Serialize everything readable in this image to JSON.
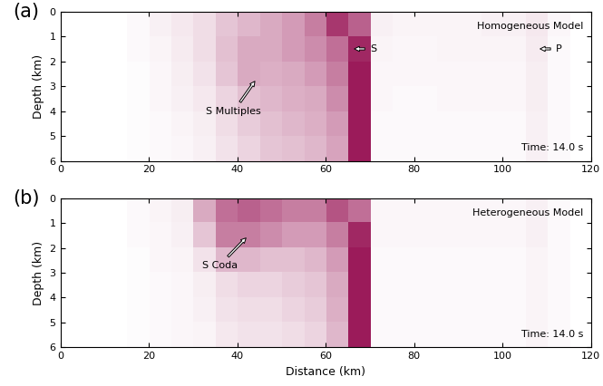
{
  "chart_data": [
    {
      "type": "heatmap",
      "panel_label": "(a)",
      "model_label": "Homogeneous Model",
      "time_label": "Time: 14.0 s",
      "ylabel": "Depth (km)",
      "color": "#9b1b5a",
      "xlim": [
        0,
        120
      ],
      "ylim": [
        6,
        0
      ],
      "xticks": [
        0,
        20,
        40,
        60,
        80,
        100,
        120
      ],
      "yticks": [
        0,
        1,
        2,
        3,
        4,
        5,
        6
      ],
      "cells": [
        [
          0,
          0,
          0,
          0.02,
          0.05,
          0.08,
          0.12,
          0.2,
          0.25,
          0.3,
          0.35,
          0.45,
          0.7,
          0.55,
          0.05,
          0.04,
          0.04,
          0.04,
          0.04,
          0.05,
          0.05,
          0.08,
          0.03,
          0
        ],
        [
          0,
          0,
          0,
          0.02,
          0.04,
          0.07,
          0.12,
          0.22,
          0.3,
          0.3,
          0.35,
          0.4,
          0.5,
          0.75,
          0.04,
          0.03,
          0.03,
          0.04,
          0.04,
          0.04,
          0.04,
          0.07,
          0.02,
          0
        ],
        [
          0,
          0,
          0,
          0.01,
          0.03,
          0.06,
          0.1,
          0.2,
          0.3,
          0.28,
          0.3,
          0.35,
          0.45,
          0.8,
          0.03,
          0.03,
          0.03,
          0.03,
          0.03,
          0.03,
          0.03,
          0.06,
          0.02,
          0
        ],
        [
          0,
          0,
          0,
          0.01,
          0.03,
          0.05,
          0.08,
          0.15,
          0.22,
          0.25,
          0.28,
          0.3,
          0.4,
          0.8,
          0.03,
          0.02,
          0.02,
          0.03,
          0.03,
          0.03,
          0.03,
          0.06,
          0.02,
          0
        ],
        [
          0,
          0,
          0,
          0.01,
          0.02,
          0.04,
          0.06,
          0.12,
          0.18,
          0.22,
          0.25,
          0.28,
          0.35,
          0.8,
          0.02,
          0.02,
          0.02,
          0.02,
          0.02,
          0.02,
          0.02,
          0.05,
          0.02,
          0
        ],
        [
          0,
          0,
          0,
          0.01,
          0.02,
          0.03,
          0.05,
          0.1,
          0.15,
          0.2,
          0.22,
          0.25,
          0.32,
          0.8,
          0.02,
          0.02,
          0.02,
          0.02,
          0.02,
          0.02,
          0.02,
          0.05,
          0.02,
          0
        ]
      ],
      "annotations": [
        {
          "text": "S Multiples",
          "xy": [
            44,
            2.8
          ],
          "xytext": [
            33,
            4.0
          ]
        },
        {
          "text": "S",
          "xy": [
            66.5,
            1.5
          ],
          "xytext": [
            70,
            1.5
          ]
        },
        {
          "text": "P",
          "xy": [
            108.5,
            1.5
          ],
          "xytext": [
            112,
            1.5
          ]
        }
      ]
    },
    {
      "type": "heatmap",
      "panel_label": "(b)",
      "model_label": "Heterogeneous Model",
      "time_label": "Time: 14.0 s",
      "xlabel": "Distance (km)",
      "ylabel": "Depth (km)",
      "color": "#9b1b5a",
      "xlim": [
        0,
        120
      ],
      "ylim": [
        6,
        0
      ],
      "xticks": [
        0,
        20,
        40,
        60,
        80,
        100,
        120
      ],
      "yticks": [
        0,
        1,
        2,
        3,
        4,
        5,
        6
      ],
      "cells": [
        [
          0,
          0,
          0,
          0.02,
          0.04,
          0.06,
          0.3,
          0.5,
          0.55,
          0.5,
          0.45,
          0.45,
          0.6,
          0.5,
          0.03,
          0.03,
          0.03,
          0.03,
          0.03,
          0.03,
          0.03,
          0.05,
          0.02,
          0
        ],
        [
          0,
          0,
          0,
          0.02,
          0.03,
          0.05,
          0.2,
          0.45,
          0.45,
          0.4,
          0.35,
          0.35,
          0.45,
          0.75,
          0.03,
          0.03,
          0.03,
          0.03,
          0.03,
          0.03,
          0.03,
          0.05,
          0.02,
          0
        ],
        [
          0,
          0,
          0,
          0.01,
          0.03,
          0.04,
          0.1,
          0.25,
          0.25,
          0.22,
          0.22,
          0.25,
          0.35,
          0.8,
          0.02,
          0.02,
          0.02,
          0.02,
          0.02,
          0.02,
          0.02,
          0.04,
          0.02,
          0
        ],
        [
          0,
          0,
          0,
          0.01,
          0.02,
          0.03,
          0.06,
          0.12,
          0.15,
          0.15,
          0.18,
          0.2,
          0.3,
          0.8,
          0.02,
          0.02,
          0.02,
          0.02,
          0.02,
          0.02,
          0.02,
          0.04,
          0.02,
          0
        ],
        [
          0,
          0,
          0,
          0.01,
          0.02,
          0.03,
          0.05,
          0.1,
          0.12,
          0.12,
          0.15,
          0.18,
          0.28,
          0.8,
          0.02,
          0.02,
          0.02,
          0.02,
          0.02,
          0.02,
          0.02,
          0.04,
          0.02,
          0
        ],
        [
          0,
          0,
          0,
          0.01,
          0.02,
          0.03,
          0.04,
          0.08,
          0.1,
          0.1,
          0.12,
          0.15,
          0.25,
          0.8,
          0.02,
          0.02,
          0.02,
          0.02,
          0.02,
          0.02,
          0.02,
          0.04,
          0.02,
          0
        ]
      ],
      "annotations": [
        {
          "text": "S Coda",
          "xy": [
            42,
            1.6
          ],
          "xytext": [
            32,
            2.7
          ]
        }
      ]
    }
  ]
}
